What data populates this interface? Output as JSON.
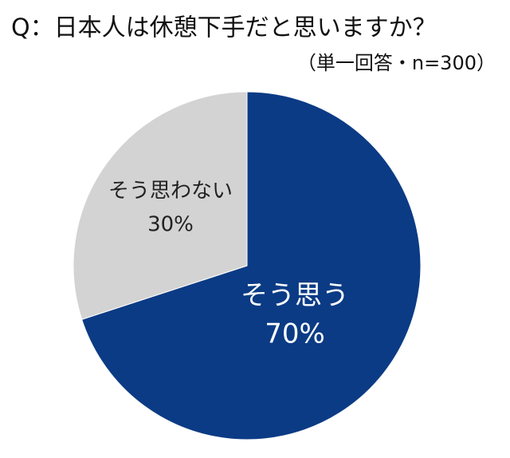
{
  "chart_data": {
    "type": "pie",
    "title": "Q：日本人は休憩下手だと思いますか？",
    "subtitle": "（単一回答・n=300）",
    "categories": [
      "そう思う",
      "そう思わない"
    ],
    "values": [
      70,
      30
    ],
    "value_labels": [
      "70%",
      "30%"
    ],
    "colors": [
      "#0b3b85",
      "#d3d3d3"
    ]
  }
}
